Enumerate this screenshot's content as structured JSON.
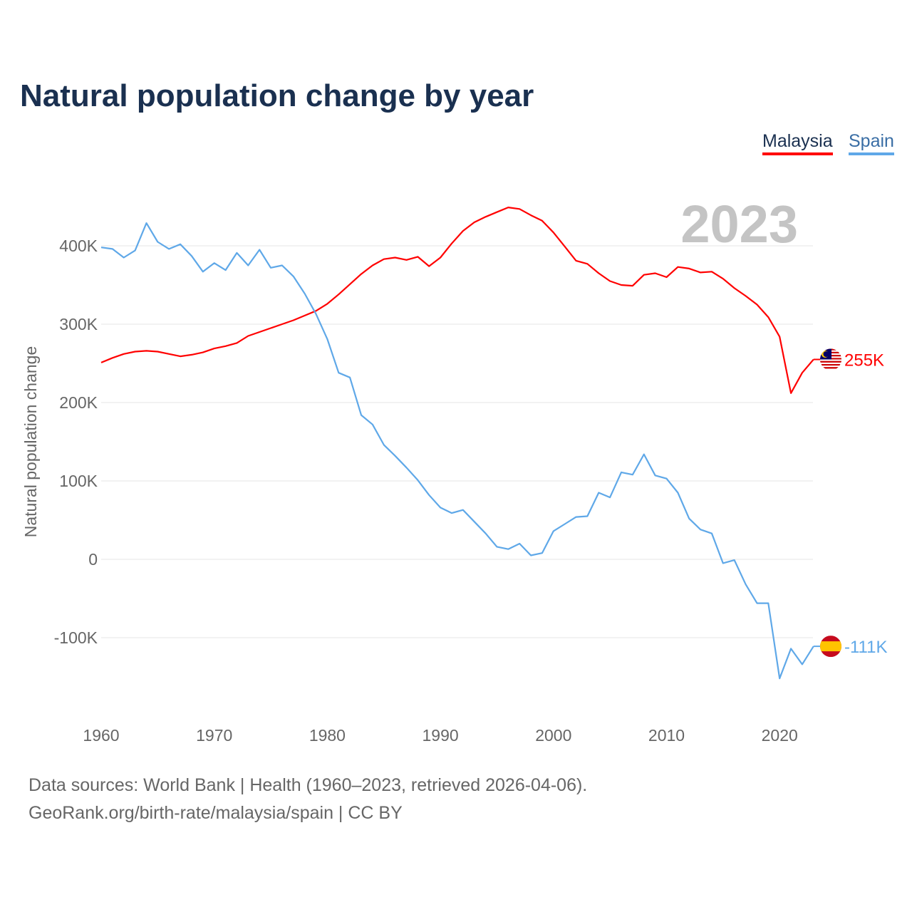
{
  "chart_data": {
    "type": "line",
    "title": "Natural population change by year",
    "ylabel": "Natural population change",
    "xlabel": "",
    "xlim": [
      1960,
      2023
    ],
    "ylim": [
      -190000,
      470000
    ],
    "x_ticks": [
      1960,
      1970,
      1980,
      1990,
      2000,
      2010,
      2020
    ],
    "x_tick_labels": [
      "1960",
      "1970",
      "1980",
      "1990",
      "2000",
      "2010",
      "2020"
    ],
    "y_ticks": [
      -100000,
      0,
      100000,
      200000,
      300000,
      400000
    ],
    "y_tick_labels": [
      "-100K",
      "0",
      "100K",
      "200K",
      "300K",
      "400K"
    ],
    "grid": true,
    "legend_position": "top-right",
    "year_label": "2023",
    "x": [
      1960,
      1961,
      1962,
      1963,
      1964,
      1965,
      1966,
      1967,
      1968,
      1969,
      1970,
      1971,
      1972,
      1973,
      1974,
      1975,
      1976,
      1977,
      1978,
      1979,
      1980,
      1981,
      1982,
      1983,
      1984,
      1985,
      1986,
      1987,
      1988,
      1989,
      1990,
      1991,
      1992,
      1993,
      1994,
      1995,
      1996,
      1997,
      1998,
      1999,
      2000,
      2001,
      2002,
      2003,
      2004,
      2005,
      2006,
      2007,
      2008,
      2009,
      2010,
      2011,
      2012,
      2013,
      2014,
      2015,
      2016,
      2017,
      2018,
      2019,
      2020,
      2021,
      2022,
      2023
    ],
    "series": [
      {
        "name": "Malaysia",
        "color": "#ff0000",
        "end_label": "255K",
        "values": [
          251000,
          257000,
          262000,
          265000,
          266000,
          265000,
          262000,
          259000,
          261000,
          264000,
          269000,
          272000,
          276000,
          285000,
          290000,
          295000,
          300000,
          305000,
          311000,
          317000,
          326000,
          338000,
          351000,
          364000,
          375000,
          383000,
          385000,
          382000,
          386000,
          374000,
          385000,
          403000,
          419000,
          430000,
          437000,
          443000,
          449000,
          447000,
          439000,
          432000,
          417000,
          399000,
          381000,
          377000,
          365000,
          355000,
          350000,
          349000,
          363000,
          365000,
          360000,
          373000,
          371000,
          366000,
          367000,
          358000,
          346000,
          336000,
          325000,
          309000,
          284000,
          212000,
          238000,
          255000
        ]
      },
      {
        "name": "Spain",
        "color": "#5fa8e8",
        "end_label": "-111K",
        "values": [
          398000,
          396000,
          385000,
          394000,
          429000,
          405000,
          396000,
          402000,
          387000,
          367000,
          378000,
          369000,
          391000,
          375000,
          395000,
          372000,
          375000,
          361000,
          339000,
          313000,
          281000,
          238000,
          232000,
          184000,
          172000,
          146000,
          132000,
          117000,
          101000,
          82000,
          66000,
          59000,
          63000,
          48000,
          33000,
          16000,
          13000,
          20000,
          5000,
          8000,
          36000,
          45000,
          54000,
          55000,
          85000,
          79000,
          111000,
          108000,
          134000,
          107000,
          103000,
          85000,
          52000,
          38000,
          33000,
          -5000,
          -1000,
          -32000,
          -56000,
          -56000,
          -152000,
          -114000,
          -134000,
          -111000
        ]
      }
    ]
  },
  "legend": {
    "malaysia": "Malaysia",
    "spain": "Spain"
  },
  "footer": {
    "line1": "Data sources: World Bank | Health (1960–2023, retrieved 2026-04-06).",
    "line2": "GeoRank.org/birth-rate/malaysia/spain | CC BY"
  }
}
